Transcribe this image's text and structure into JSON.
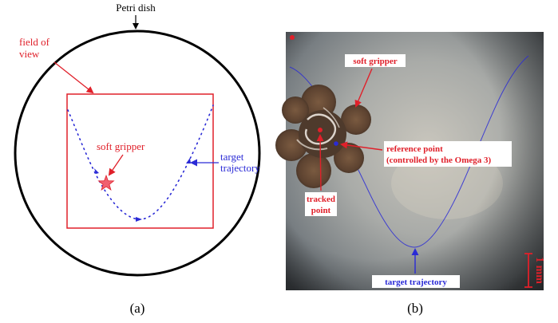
{
  "panel_a": {
    "caption": "(a)",
    "petri_label": "Petri dish",
    "fov_label_line1": "field of",
    "fov_label_line2": "view",
    "gripper_label": "soft gripper",
    "target_label_line1": "target",
    "target_label_line2": "trajectory"
  },
  "panel_b": {
    "caption": "(b)",
    "gripper_label": "soft gripper",
    "reference_label_line1": "reference point",
    "reference_label_line2": "(controlled by the Omega 3)",
    "tracked_label_line1": "tracked",
    "tracked_label_line2": "point",
    "target_label": "target trajectory",
    "scale_label": "1 mm"
  },
  "colors": {
    "red": "#e0202a",
    "blue": "#2a2ad6",
    "black": "#000000",
    "gripper_star": "#f06070"
  }
}
